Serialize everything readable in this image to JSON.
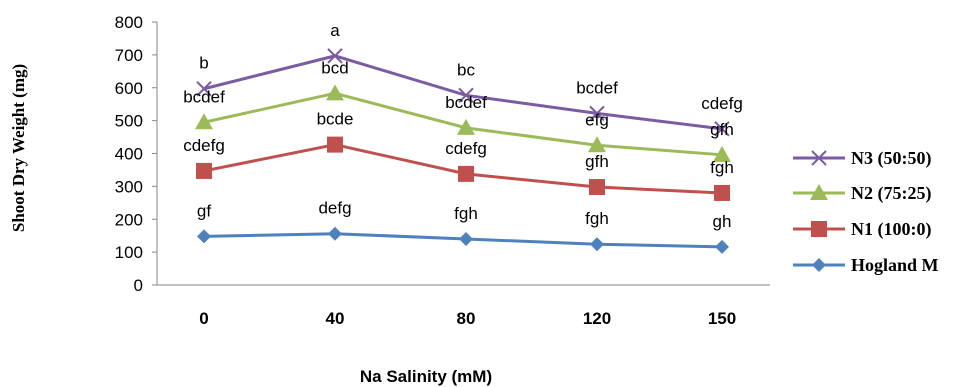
{
  "chart_data": {
    "type": "line",
    "title": "",
    "xlabel": "Na Salinity (mM)",
    "ylabel": "Shoot Dry Weight (mg)",
    "categories": [
      "0",
      "40",
      "80",
      "120",
      "150"
    ],
    "ylim": [
      0,
      800
    ],
    "yticks": [
      0,
      100,
      200,
      300,
      400,
      500,
      600,
      700,
      800
    ],
    "grid": false,
    "legend_position": "right",
    "series": [
      {
        "name": "N3 (50:50)",
        "color": "#7b5ca3",
        "marker": "x",
        "values": [
          597,
          697,
          577,
          522,
          475
        ],
        "labels": [
          "b",
          "a",
          "bc",
          "bcdef",
          "cdefg"
        ]
      },
      {
        "name": "N2 (75:25)",
        "color": "#9bbb59",
        "marker": "triangle",
        "values": [
          495,
          583,
          478,
          425,
          396
        ],
        "labels": [
          "bcdef",
          "bcd",
          "bcdef",
          "efg",
          "gfh"
        ]
      },
      {
        "name": "N1 (100:0)",
        "color": "#c0504d",
        "marker": "square",
        "values": [
          347,
          427,
          338,
          298,
          280
        ],
        "labels": [
          "cdefg",
          "bcde",
          "cdefg",
          "gfh",
          "fgh"
        ]
      },
      {
        "name": "Hogland M",
        "color": "#4f81bd",
        "marker": "diamond",
        "values": [
          148,
          156,
          140,
          124,
          116
        ],
        "labels": [
          "gf",
          "defg",
          "fgh",
          "fgh",
          "gh"
        ]
      }
    ]
  }
}
